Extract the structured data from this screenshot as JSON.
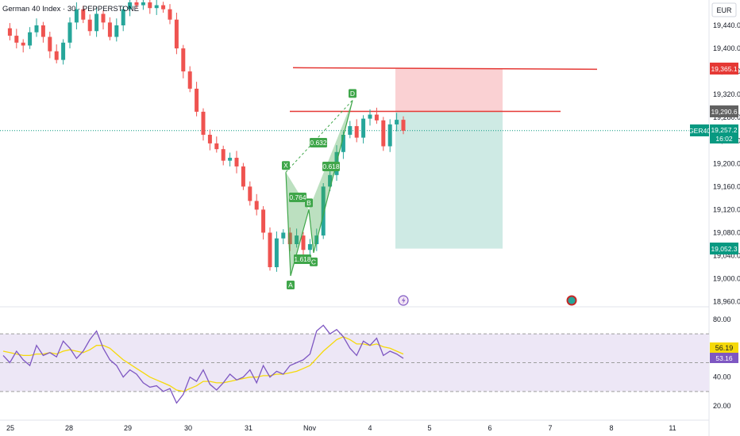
{
  "header": {
    "title": "German 40 Index · 30 · PEPPERSTONE",
    "currency": "EUR"
  },
  "colors": {
    "up": "#26a69a",
    "down": "#ef5350",
    "rsi_line": "#7e57c2",
    "rsi_ma": "#f5d90a",
    "rsi_band": "#ede7f6",
    "pattern_green": "#3fa64a",
    "stop_zone": "#f9c9cb",
    "target_zone": "#c9e8e1",
    "level_line": "#e53935",
    "current_price": "#089981"
  },
  "chart_data": [
    {
      "type": "candlestick",
      "ylim": [
        18940,
        19480
      ],
      "y_ticks": [
        "18,960.0",
        "19,000.0",
        "19,040.0",
        "19,080.0",
        "19,120.0",
        "19,160.0",
        "19,200.0",
        "19,240.0",
        "19,280.0",
        "19,320.0",
        "19,360.0",
        "19,400.0",
        "19,440.0"
      ],
      "x_ticks": [
        "25",
        "28",
        "29",
        "30",
        "31",
        "Nov",
        "4",
        "5",
        "6",
        "7",
        "8",
        "11"
      ],
      "price_labels": {
        "stop_level": "19,365.1",
        "entry_level": "19,290.6",
        "symbol": "GER40",
        "current_price": "19,257.2",
        "countdown": "16:02",
        "target_level": "19,052.3"
      },
      "levels": {
        "stop": 19365.1,
        "entry": 19290.6,
        "current": 19257.2,
        "target": 19052.3
      },
      "pattern_points": [
        {
          "label": "X",
          "value": 19185
        },
        {
          "label": "A",
          "value": 19005
        },
        {
          "label": "B",
          "value": 19120
        },
        {
          "label": "C",
          "value": 19045
        },
        {
          "label": "D",
          "value": 19310
        }
      ],
      "pattern_ratio_tags": [
        "0.632",
        "0.764",
        "0.618",
        "1.618"
      ],
      "series": [
        {
          "values": [
            19435,
            19422,
            19410,
            19405,
            19428,
            19440,
            19420,
            19395,
            19380,
            19410,
            19445,
            19468,
            19450,
            19430,
            19460,
            19445,
            19420,
            19440,
            19468,
            19480,
            19475,
            19480,
            19470,
            19475,
            19468,
            19450,
            19400,
            19360,
            19330,
            19290,
            19250,
            19235,
            19225,
            19205,
            19210,
            19195,
            19160,
            19135,
            19120,
            19080,
            19020,
            19070,
            19080,
            19060,
            19075,
            19050,
            19060,
            19075,
            19160,
            19180,
            19220,
            19250,
            19265,
            19245,
            19278,
            19285,
            19275,
            19230,
            19268,
            19276,
            19257
          ]
        }
      ]
    },
    {
      "type": "line",
      "title": "",
      "ylim": [
        10,
        90
      ],
      "y_ticks": [
        "20.00",
        "40.00",
        "60.00",
        "80.00"
      ],
      "bands": [
        30,
        50,
        70
      ],
      "value_labels": {
        "rsi_ma": "56.19",
        "rsi": "53.16"
      },
      "series": [
        {
          "values": [
            55,
            50,
            58,
            52,
            48,
            62,
            55,
            57,
            54,
            65,
            60,
            53,
            58,
            66,
            72,
            60,
            52,
            48,
            40,
            45,
            42,
            36,
            33,
            34,
            30,
            32,
            22,
            28,
            40,
            37,
            45,
            35,
            31,
            36,
            42,
            38,
            40,
            45,
            36,
            48,
            40,
            44,
            42,
            48,
            50,
            52,
            56,
            72,
            76,
            70,
            73,
            68,
            60,
            55,
            65,
            62,
            67,
            55,
            58,
            56,
            53
          ]
        },
        {
          "values": [
            58,
            57,
            56,
            55,
            55,
            56,
            56,
            57,
            56,
            58,
            59,
            58,
            57,
            59,
            62,
            62,
            60,
            56,
            52,
            49,
            46,
            43,
            40,
            38,
            36,
            34,
            31,
            30,
            32,
            34,
            37,
            37,
            36,
            36,
            37,
            38,
            39,
            40,
            40,
            41,
            41,
            42,
            42,
            43,
            44,
            46,
            48,
            53,
            58,
            62,
            66,
            68,
            66,
            63,
            63,
            62,
            63,
            61,
            60,
            58,
            56
          ]
        }
      ]
    }
  ]
}
